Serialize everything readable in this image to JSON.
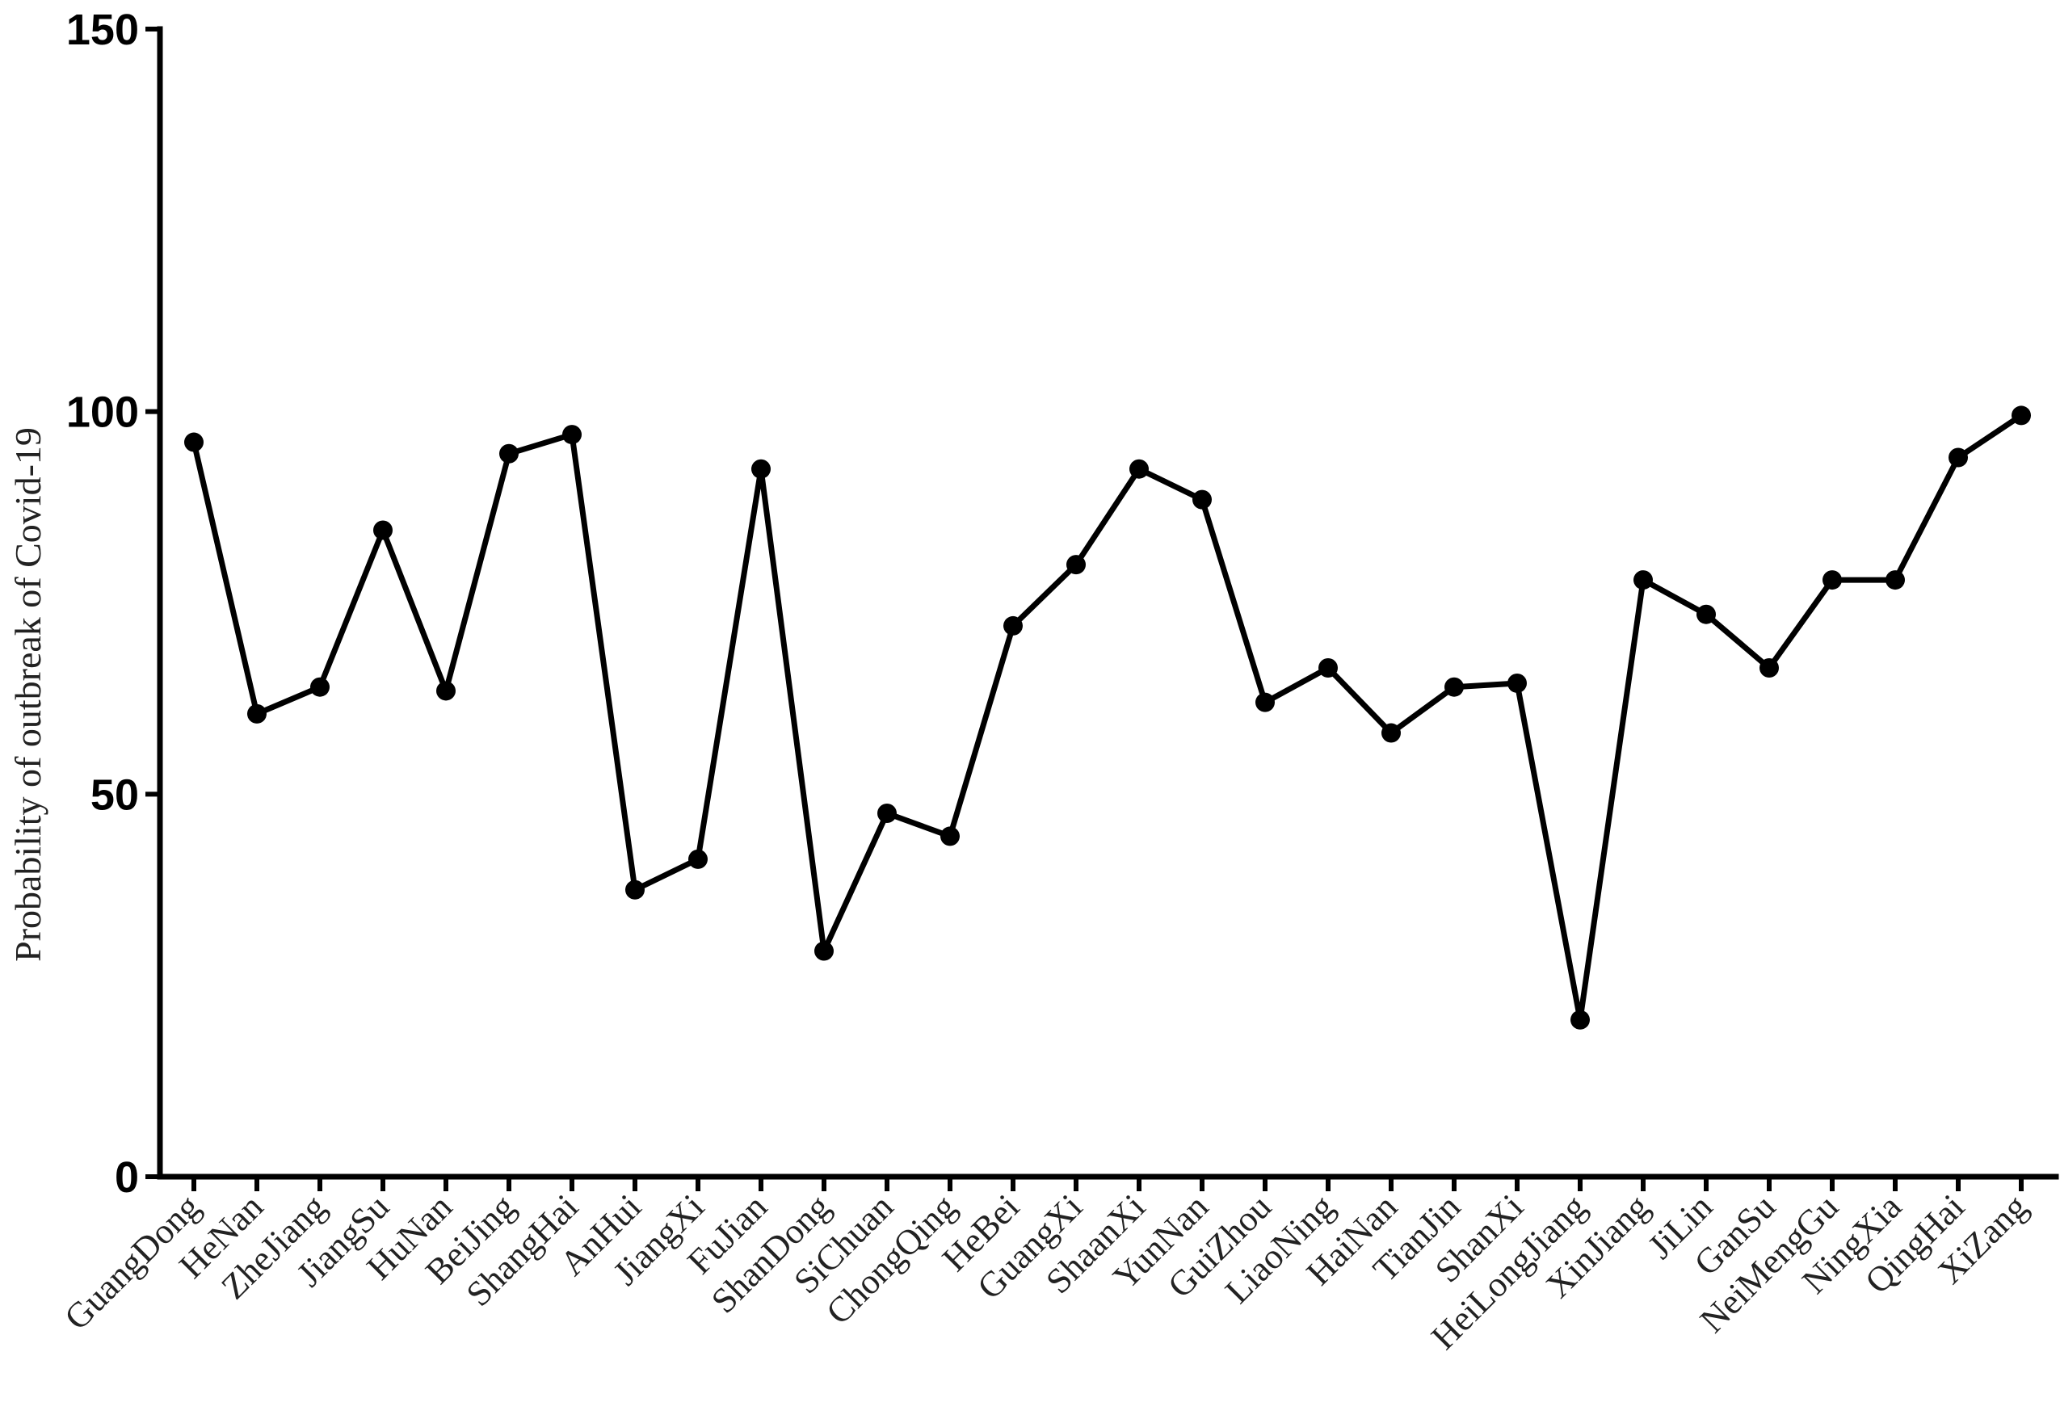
{
  "chart_data": {
    "type": "line",
    "title": "",
    "xlabel": "",
    "ylabel": "Probability of outbreak of Covid-19",
    "ylim": [
      0,
      150
    ],
    "yticks": [
      "0",
      "50",
      "100",
      "150"
    ],
    "grid": false,
    "categories": [
      "GuangDong",
      "HeNan",
      "ZheJiang",
      "JiangSu",
      "HuNan",
      "BeiJing",
      "ShangHai",
      "AnHui",
      "JiangXi",
      "FuJian",
      "ShanDong",
      "SiChuan",
      "ChongQing",
      "HeBei",
      "GuangXi",
      "ShaanXi",
      "YunNan",
      "GuiZhou",
      "LiaoNing",
      "HaiNan",
      "TianJin",
      "ShanXi",
      "HeiLongJiang",
      "XinJiang",
      "JiLin",
      "GanSu",
      "NeiMengGu",
      "NingXia",
      "QingHai",
      "XiZang"
    ],
    "series": [
      {
        "values": [
          96,
          60.5,
          64,
          84.5,
          63.5,
          94.5,
          97,
          37.5,
          41.5,
          92.5,
          29.5,
          47.5,
          44.5,
          72,
          80,
          92.5,
          88.5,
          62,
          66.5,
          58,
          64,
          64.5,
          20.5,
          78,
          73.5,
          66.5,
          78,
          78,
          94,
          99.5
        ]
      }
    ]
  }
}
